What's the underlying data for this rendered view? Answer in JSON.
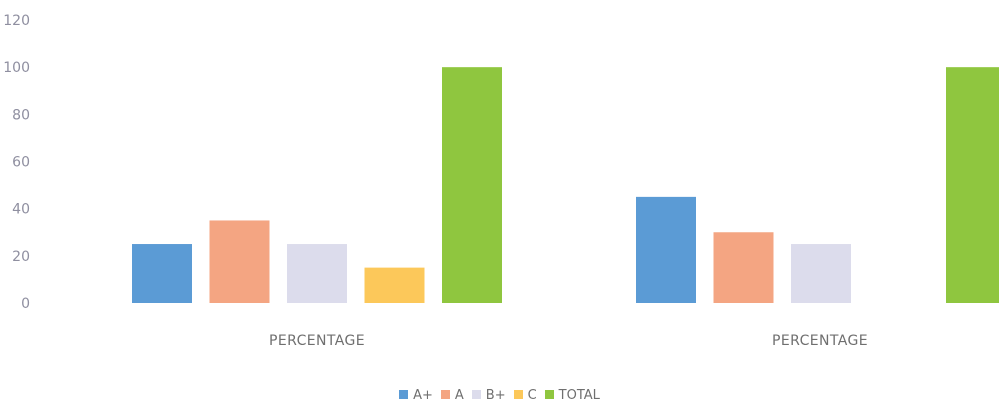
{
  "chart_data": {
    "type": "bar",
    "categories": [
      "PERCENTAGE",
      "PERCENTAGE"
    ],
    "series": [
      {
        "name": "A+",
        "color": "#5b9bd5",
        "values": [
          25,
          45
        ]
      },
      {
        "name": "A",
        "color": "#f4a582",
        "values": [
          35,
          30
        ]
      },
      {
        "name": "B+",
        "color": "#dcdcec",
        "values": [
          25,
          25
        ]
      },
      {
        "name": "C",
        "color": "#fcc85a",
        "values": [
          15,
          null
        ]
      },
      {
        "name": "TOTAL",
        "color": "#8fc63f",
        "values": [
          100,
          100
        ]
      }
    ],
    "yticks": [
      "0",
      "20",
      "40",
      "60",
      "80",
      "100",
      "120"
    ],
    "ylim": [
      0,
      120
    ],
    "title": "",
    "xlabel": "",
    "ylabel": "",
    "grid": false,
    "legend_position": "bottom"
  }
}
